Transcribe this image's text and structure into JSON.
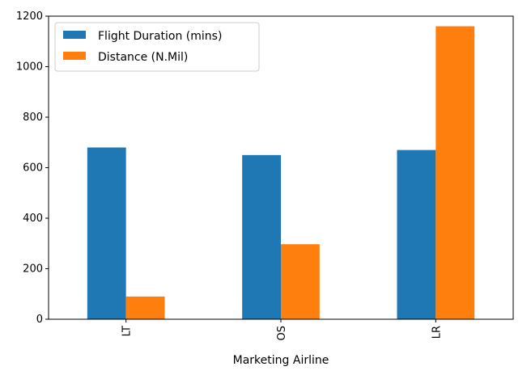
{
  "chart_data": {
    "type": "bar",
    "title": "",
    "xlabel": "Marketing Airline",
    "ylabel": "",
    "categories": [
      "LT",
      "OS",
      "LR"
    ],
    "series": [
      {
        "name": "Flight Duration (mins)",
        "color": "#1f77b4",
        "values": [
          680,
          650,
          670
        ]
      },
      {
        "name": "Distance (N.Mil)",
        "color": "#ff7f0e",
        "values": [
          90,
          297,
          1160
        ]
      }
    ],
    "ylim": [
      0,
      1200
    ],
    "yticks": [
      0,
      200,
      400,
      600,
      800,
      1000,
      1200
    ],
    "yticks_labels": [
      "0",
      "200",
      "400",
      "600",
      "800",
      "1000",
      "1200"
    ],
    "grid": false,
    "legend_position": "top-left"
  }
}
